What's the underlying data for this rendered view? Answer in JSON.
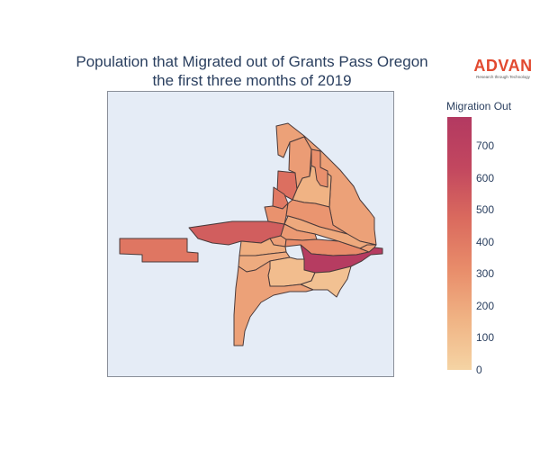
{
  "title_line1": "Population that Migrated out of Grants Pass Oregon",
  "title_line2": "the first three months of 2019",
  "logo": {
    "word": "ADVAN",
    "tagline": "Research through Technology"
  },
  "colorbar": {
    "title": "Migration Out",
    "range": [
      0,
      790
    ],
    "ticks": [
      "700",
      "600",
      "500",
      "400",
      "300",
      "200",
      "100",
      "0"
    ],
    "colors": [
      "#f5d4a4",
      "#f0b384",
      "#e88c6a",
      "#da6a5e",
      "#c2475f",
      "#b33961"
    ]
  },
  "regions": [
    {
      "id": "west-detached-tract",
      "value": 420
    },
    {
      "id": "northwest-band-tract",
      "value": 530
    },
    {
      "id": "north-large-tract",
      "value": 230
    },
    {
      "id": "north-west-strip-tract",
      "value": 250
    },
    {
      "id": "north-notch-tract",
      "value": 160
    },
    {
      "id": "north-east-inner-tract",
      "value": 300
    },
    {
      "id": "north-far-west-top-tract",
      "value": 450
    },
    {
      "id": "north-far-west-low-tract",
      "value": 400
    },
    {
      "id": "central-upper-left-tract",
      "value": 290
    },
    {
      "id": "central-middle-tract",
      "value": 280
    },
    {
      "id": "central-east-long-tract",
      "value": 200
    },
    {
      "id": "central-small-tract",
      "value": 240
    },
    {
      "id": "central-right-tract",
      "value": 260
    },
    {
      "id": "central-ribbon-tract",
      "value": 320
    },
    {
      "id": "east-dark-tract",
      "value": 760
    },
    {
      "id": "far-east-spike-tract",
      "value": 230
    },
    {
      "id": "south-center-tract",
      "value": 110
    },
    {
      "id": "south-west-tract",
      "value": 180
    },
    {
      "id": "south-upper-tract",
      "value": 190
    },
    {
      "id": "south-east-tract",
      "value": 90
    },
    {
      "id": "south-west-long-tract",
      "value": 230
    }
  ]
}
